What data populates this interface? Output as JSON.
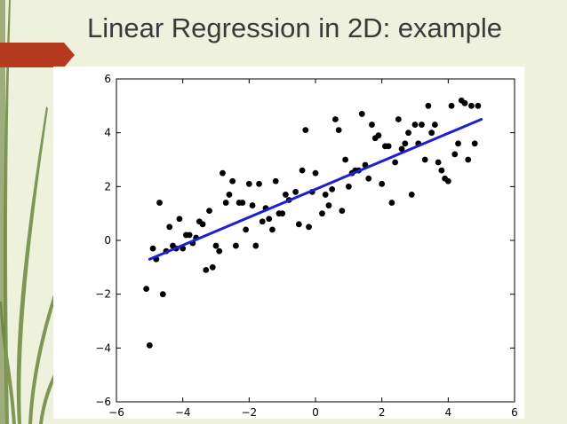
{
  "slide": {
    "title": "Linear Regression in 2D: example",
    "accent_color": "#b63a1f",
    "background_color": "#eef1dc",
    "decoration": "green-grass-stems-left"
  },
  "chart_data": {
    "type": "scatter",
    "title": "",
    "xlabel": "",
    "ylabel": "",
    "xlim": [
      -6,
      6
    ],
    "ylim": [
      -6,
      6
    ],
    "x_ticks": [
      -6,
      -4,
      -2,
      0,
      2,
      4,
      6
    ],
    "y_ticks": [
      -6,
      -4,
      -2,
      0,
      2,
      4,
      6
    ],
    "x_tick_labels": [
      "−6",
      "−4",
      "−2",
      "0",
      "2",
      "4",
      "6"
    ],
    "y_tick_labels": [
      "−6",
      "−4",
      "−2",
      "0",
      "2",
      "4",
      "6"
    ],
    "grid": false,
    "legend": "none",
    "point_color": "#000000",
    "line_color": "#1f1fcf",
    "regression_line": {
      "x": [
        -5.0,
        5.0
      ],
      "y": [
        -0.7,
        4.5
      ]
    },
    "series": [
      {
        "points": [
          [
            -5.1,
            -1.8
          ],
          [
            -5.0,
            -3.9
          ],
          [
            -4.9,
            -0.3
          ],
          [
            -4.8,
            -0.7
          ],
          [
            -4.7,
            1.4
          ],
          [
            -4.6,
            -2.0
          ],
          [
            -4.5,
            -0.4
          ],
          [
            -4.4,
            0.5
          ],
          [
            -4.3,
            -0.2
          ],
          [
            -4.2,
            -0.3
          ],
          [
            -4.1,
            0.8
          ],
          [
            -4.0,
            -0.3
          ],
          [
            -3.9,
            0.2
          ],
          [
            -3.8,
            0.2
          ],
          [
            -3.7,
            -0.1
          ],
          [
            -3.6,
            0.1
          ],
          [
            -3.5,
            0.7
          ],
          [
            -3.4,
            0.6
          ],
          [
            -3.3,
            -1.1
          ],
          [
            -3.2,
            1.1
          ],
          [
            -3.1,
            -1.0
          ],
          [
            -3.0,
            -0.2
          ],
          [
            -2.9,
            -0.4
          ],
          [
            -2.8,
            2.5
          ],
          [
            -2.7,
            1.4
          ],
          [
            -2.6,
            1.7
          ],
          [
            -2.5,
            2.2
          ],
          [
            -2.4,
            -0.2
          ],
          [
            -2.3,
            1.4
          ],
          [
            -2.2,
            1.4
          ],
          [
            -2.1,
            0.4
          ],
          [
            -2.0,
            2.1
          ],
          [
            -1.9,
            1.3
          ],
          [
            -1.8,
            -0.2
          ],
          [
            -1.7,
            2.1
          ],
          [
            -1.6,
            0.7
          ],
          [
            -1.5,
            1.2
          ],
          [
            -1.4,
            0.8
          ],
          [
            -1.3,
            0.4
          ],
          [
            -1.2,
            2.2
          ],
          [
            -1.1,
            1.0
          ],
          [
            -1.0,
            1.0
          ],
          [
            -0.9,
            1.7
          ],
          [
            -0.8,
            1.5
          ],
          [
            -0.6,
            1.8
          ],
          [
            -0.5,
            0.6
          ],
          [
            -0.4,
            2.6
          ],
          [
            -0.3,
            4.1
          ],
          [
            -0.2,
            0.5
          ],
          [
            -0.1,
            1.8
          ],
          [
            0.0,
            2.5
          ],
          [
            0.2,
            1.0
          ],
          [
            0.3,
            1.7
          ],
          [
            0.4,
            1.3
          ],
          [
            0.5,
            1.9
          ],
          [
            0.6,
            4.5
          ],
          [
            0.7,
            4.1
          ],
          [
            0.8,
            1.1
          ],
          [
            0.9,
            3.0
          ],
          [
            1.0,
            2.0
          ],
          [
            1.1,
            2.5
          ],
          [
            1.2,
            2.6
          ],
          [
            1.3,
            2.6
          ],
          [
            1.4,
            4.7
          ],
          [
            1.5,
            2.8
          ],
          [
            1.6,
            2.3
          ],
          [
            1.7,
            4.3
          ],
          [
            1.8,
            3.8
          ],
          [
            1.9,
            3.9
          ],
          [
            2.0,
            2.1
          ],
          [
            2.1,
            3.5
          ],
          [
            2.2,
            3.5
          ],
          [
            2.3,
            1.4
          ],
          [
            2.4,
            2.9
          ],
          [
            2.5,
            4.5
          ],
          [
            2.6,
            3.4
          ],
          [
            2.7,
            3.6
          ],
          [
            2.8,
            4.0
          ],
          [
            2.9,
            1.7
          ],
          [
            3.0,
            4.3
          ],
          [
            3.1,
            3.6
          ],
          [
            3.2,
            4.3
          ],
          [
            3.3,
            3.0
          ],
          [
            3.4,
            5.0
          ],
          [
            3.5,
            4.0
          ],
          [
            3.6,
            4.3
          ],
          [
            3.7,
            2.9
          ],
          [
            3.8,
            2.6
          ],
          [
            3.9,
            2.3
          ],
          [
            4.0,
            2.2
          ],
          [
            4.1,
            5.0
          ],
          [
            4.2,
            3.2
          ],
          [
            4.3,
            3.6
          ],
          [
            4.4,
            5.2
          ],
          [
            4.5,
            5.1
          ],
          [
            4.6,
            3.0
          ],
          [
            4.7,
            5.0
          ],
          [
            4.8,
            3.6
          ],
          [
            4.9,
            5.0
          ]
        ]
      }
    ]
  }
}
